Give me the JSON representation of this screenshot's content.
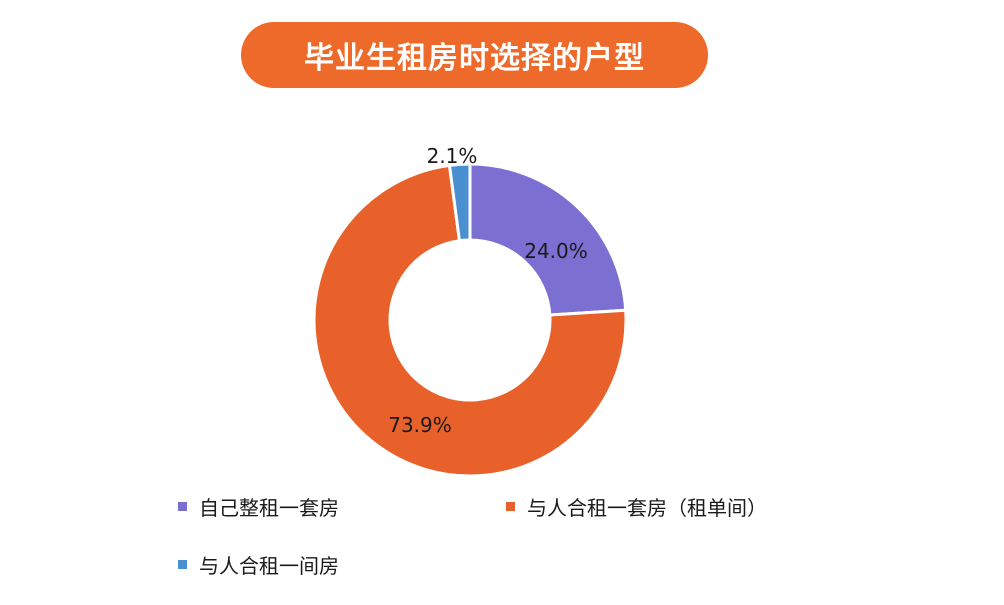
{
  "title": "毕业生租房时选择的户型",
  "colors": {
    "title_bg": "#EE6A2A",
    "slice_border": "#ffffff"
  },
  "chart_data": {
    "type": "pie",
    "variant": "donut",
    "title": "毕业生租房时选择的户型",
    "series": [
      {
        "name": "自己整租一套房",
        "value": 24.0,
        "label": "24.0%",
        "color": "#7B70D2"
      },
      {
        "name": "与人合租一套房（租单间）",
        "value": 73.9,
        "label": "73.9%",
        "color": "#E8612A"
      },
      {
        "name": "与人合租一间房",
        "value": 2.1,
        "label": "2.1%",
        "color": "#4A8FCF"
      }
    ],
    "legend": "bottom"
  }
}
